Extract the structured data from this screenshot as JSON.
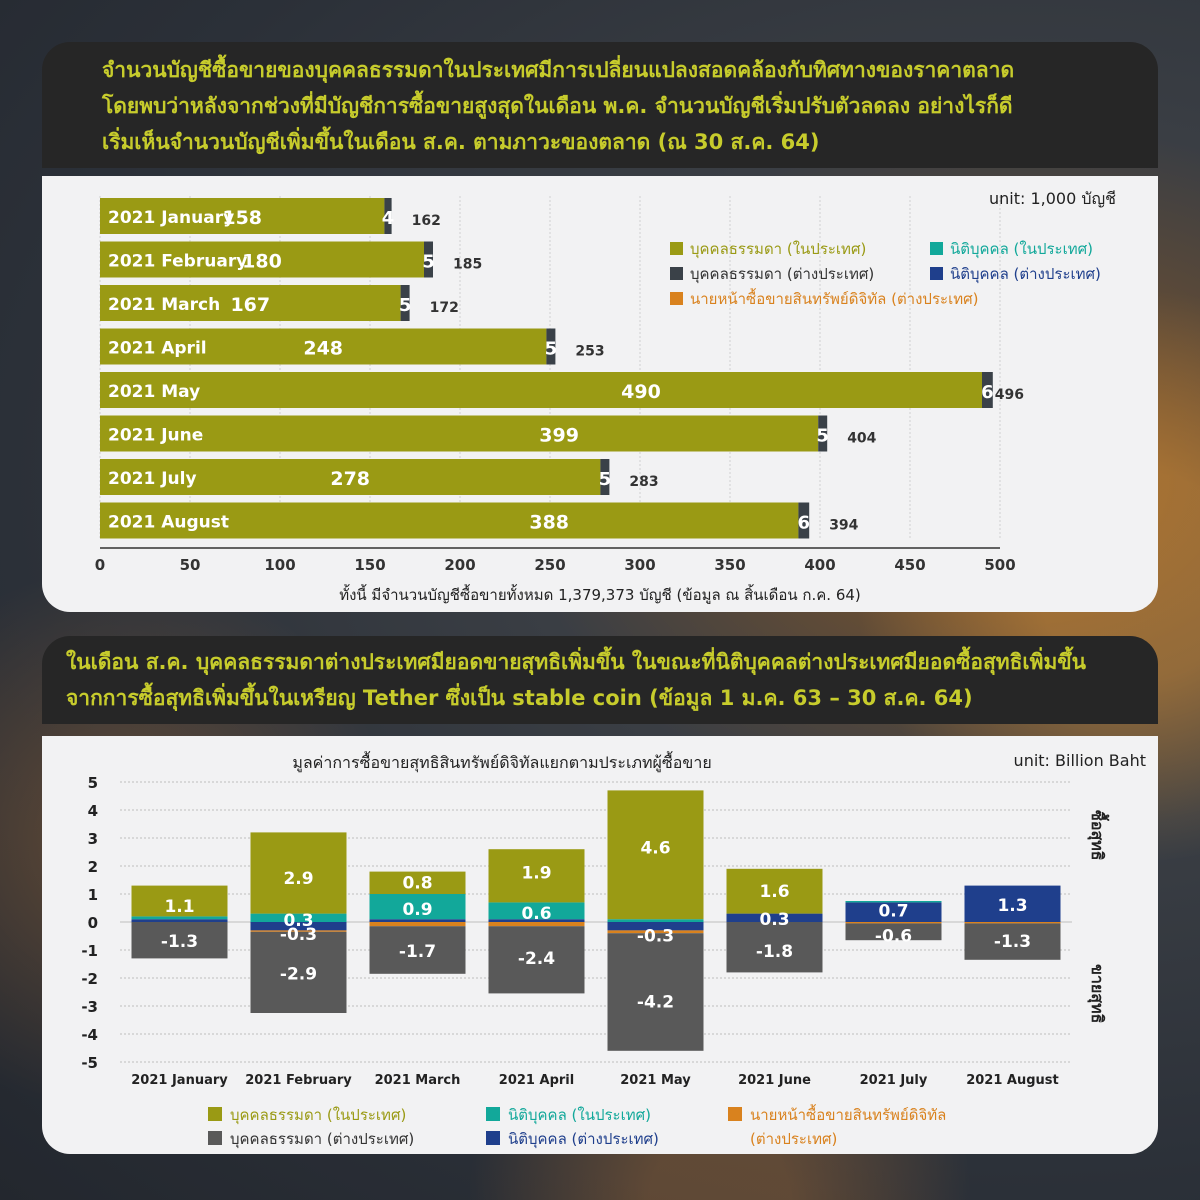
{
  "banner1": {
    "lines": [
      "จำนวนบัญชีซื้อขายของบุคคลธรรมดาในประเทศมีการเปลี่ยนแปลงสอดคล้องกับทิศทางของราคาตลาด",
      "โดยพบว่าหลังจากช่วงที่มีบัญชีการซื้อขายสูงสุดในเดือน พ.ค. จำนวนบัญชีเริ่มปรับตัวลดลง อย่างไรก็ดี",
      "เริ่มเห็นจำนวนบัญชีเพิ่มขึ้นในเดือน ส.ค. ตามภาวะของตลาด (ณ 30 ส.ค. 64)"
    ]
  },
  "banner2": {
    "lines": [
      "ในเดือน ส.ค. บุคคลธรรมดาต่างประเทศมียอดขายสุทธิเพิ่มขึ้น ในขณะที่นิติบุคคลต่างประเทศมียอดซื้อสุทธิเพิ่มขึ้น",
      "จากการซื้อสุทธิเพิ่มขึ้นในเหรียญ Tether ซึ่งเป็น stable coin (ข้อมูล 1 ม.ค. 63 – 30 ส.ค. 64)"
    ]
  },
  "colors": {
    "domestic_individual": "#9a9a14",
    "foreign_individual": "#3a4148",
    "foreign_individual_chart2": "#595959",
    "domestic_juristic": "#12a89a",
    "foreign_juristic": "#1f3f8c",
    "broker": "#d9821e"
  },
  "chart_data": [
    {
      "type": "bar",
      "orientation": "horizontal",
      "stacked": true,
      "unit_label": "unit: 1,000 บัญชี",
      "categories": [
        "2021 January",
        "2021 February",
        "2021 March",
        "2021 April",
        "2021 May",
        "2021 June",
        "2021 July",
        "2021 August"
      ],
      "series": [
        {
          "name": "บุคคลธรรมดา (ในประเทศ)",
          "values": [
            158,
            180,
            167,
            248,
            490,
            399,
            278,
            388
          ]
        },
        {
          "name": "บุคคลธรรมดา (ต่างประเทศ)",
          "values": [
            4,
            5,
            5,
            5,
            6,
            5,
            5,
            6
          ]
        }
      ],
      "totals": [
        162,
        185,
        172,
        253,
        496,
        404,
        283,
        394
      ],
      "legend": [
        "บุคคลธรรมดา (ในประเทศ)",
        "นิติบุคคล (ในประเทศ)",
        "บุคคลธรรมดา (ต่างประเทศ)",
        "นิติบุคคล (ต่างประเทศ)",
        "นายหน้าซื้อขายสินทรัพย์ดิจิทัล (ต่างประเทศ)"
      ],
      "legend_placement": "top-right",
      "xlim": [
        0,
        500
      ],
      "xticks": [
        0,
        50,
        100,
        150,
        200,
        250,
        300,
        350,
        400,
        450,
        500
      ],
      "grid": true,
      "footnote": "ทั้งนี้ มีจำนวนบัญชีซื้อขายทั้งหมด 1,379,373 บัญชี (ข้อมูล ณ สิ้นเดือน ก.ค. 64)"
    },
    {
      "type": "bar",
      "stacked": true,
      "title": "มูลค่าการซื้อขายสุทธิสินทรัพย์ดิจิทัลแยกตามประเภทผู้ซื้อขาย",
      "unit_label": "unit: Billion Baht",
      "categories": [
        "2021 January",
        "2021 February",
        "2021 March",
        "2021 April",
        "2021 May",
        "2021 June",
        "2021 July",
        "2021 August"
      ],
      "series": [
        {
          "name": "บุคคลธรรมดา (ในประเทศ)",
          "values": [
            1.1,
            2.9,
            0.8,
            1.9,
            4.6,
            1.6,
            0.0,
            0.0
          ]
        },
        {
          "name": "นิติบุคคล (ในประเทศ)",
          "values": [
            0.1,
            0.3,
            0.9,
            0.6,
            0.1,
            0.0,
            0.05,
            0.0
          ]
        },
        {
          "name": "นายหน้าซื้อขายสินทรัพย์ดิจิทัล (ต่างประเทศ)",
          "values": [
            0.0,
            -0.05,
            -0.15,
            -0.15,
            -0.1,
            0.0,
            -0.05,
            -0.05
          ]
        },
        {
          "name": "บุคคลธรรมดา (ต่างประเทศ)",
          "values": [
            -1.3,
            -2.9,
            -1.7,
            -2.4,
            -4.2,
            -1.8,
            -0.6,
            -1.3
          ]
        },
        {
          "name": "นิติบุคคล (ต่างประเทศ)",
          "values": [
            0.1,
            -0.3,
            0.1,
            0.1,
            -0.3,
            0.3,
            0.7,
            1.3
          ]
        }
      ],
      "data_labels": [
        {
          "cat": 0,
          "items": [
            [
              "1.1",
              0.6
            ],
            [
              "-1.3",
              -0.65
            ]
          ]
        },
        {
          "cat": 1,
          "items": [
            [
              "2.9",
              1.6
            ],
            [
              "0.3",
              0.1
            ],
            [
              "-0.3",
              -0.4
            ],
            [
              "-2.9",
              -1.8
            ]
          ]
        },
        {
          "cat": 2,
          "items": [
            [
              "0.8",
              1.45
            ],
            [
              "0.9",
              0.5
            ],
            [
              "-1.7",
              -1.0
            ]
          ]
        },
        {
          "cat": 3,
          "items": [
            [
              "1.9",
              1.8
            ],
            [
              "0.6",
              0.35
            ],
            [
              "-2.4",
              -1.25
            ]
          ]
        },
        {
          "cat": 4,
          "items": [
            [
              "4.6",
              2.7
            ],
            [
              "-0.3",
              -0.45
            ],
            [
              "-4.2",
              -2.8
            ]
          ]
        },
        {
          "cat": 5,
          "items": [
            [
              "1.6",
              1.15
            ],
            [
              "0.3",
              0.15
            ],
            [
              "-1.8",
              -1.0
            ]
          ]
        },
        {
          "cat": 6,
          "items": [
            [
              "0.7",
              0.45
            ],
            [
              "-0.6",
              -0.45
            ]
          ]
        },
        {
          "cat": 7,
          "items": [
            [
              "1.3",
              0.65
            ],
            [
              "-1.3",
              -0.65
            ]
          ]
        }
      ],
      "ylim": [
        -5,
        5
      ],
      "yticks": [
        5,
        4,
        3,
        2,
        1,
        0,
        -1,
        -2,
        -3,
        -4,
        -5
      ],
      "grid": true,
      "side_labels": {
        "top": "ซื้อสุทธิ",
        "bottom": "ขายสุทธิ"
      },
      "legend": [
        "บุคคลธรรมดา (ในประเทศ)",
        "นิติบุคคล (ในประเทศ)",
        "นายหน้าซื้อขายสินทรัพย์ดิจิทัล",
        "บุคคลธรรมดา (ต่างประเทศ)",
        "นิติบุคคล (ต่างประเทศ)",
        "(ต่างประเทศ)"
      ],
      "legend_placement": "bottom"
    }
  ]
}
